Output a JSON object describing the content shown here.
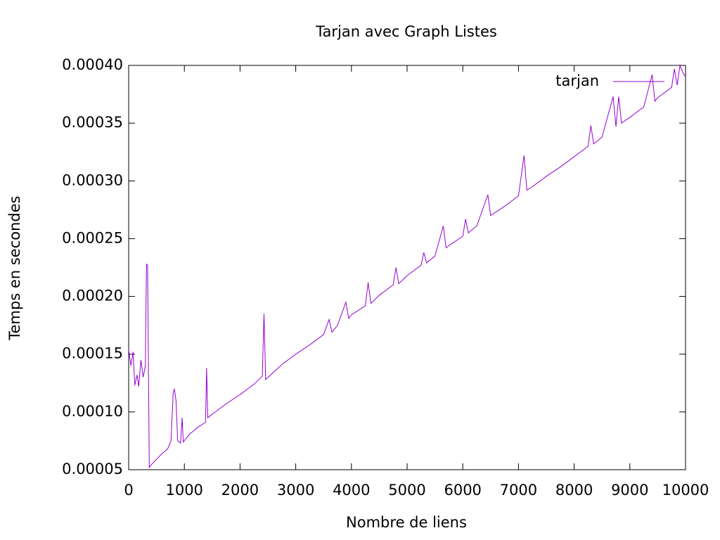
{
  "chart_data": {
    "type": "line",
    "title": "Tarjan avec Graph Listes",
    "x_label": "Nombre de liens",
    "y_label": "Temps en secondes",
    "legend": "top-right",
    "x": [
      0,
      40,
      80,
      110,
      150,
      180,
      220,
      260,
      300,
      320,
      340,
      355,
      370,
      420,
      500,
      600,
      700,
      760,
      800,
      820,
      850,
      880,
      930,
      960,
      980,
      1100,
      1250,
      1380,
      1400,
      1420,
      1500,
      1750,
      2000,
      2250,
      2400,
      2430,
      2460,
      2750,
      3000,
      3250,
      3500,
      3600,
      3650,
      3750,
      3900,
      3950,
      4000,
      4250,
      4300,
      4350,
      4500,
      4750,
      4800,
      4850,
      5000,
      5250,
      5300,
      5350,
      5500,
      5650,
      5700,
      5750,
      6000,
      6050,
      6100,
      6250,
      6450,
      6500,
      6750,
      7000,
      7100,
      7150,
      7250,
      7500,
      7750,
      8000,
      8250,
      8300,
      8350,
      8500,
      8700,
      8750,
      8800,
      8850,
      9000,
      9250,
      9400,
      9450,
      9500,
      9750,
      9800,
      9850,
      9900,
      9950,
      10000
    ],
    "series": [
      {
        "name": "tarjan",
        "color": "#9400d3",
        "values": [
          0.000154,
          0.00014,
          0.000152,
          0.000123,
          0.000132,
          0.000122,
          0.000145,
          0.00013,
          0.00014,
          0.000228,
          0.000227,
          0.00014,
          5.2e-05,
          5.5e-05,
          5.9e-05,
          6.4e-05,
          6.8e-05,
          7.5e-05,
          0.000117,
          0.00012,
          0.00011,
          7.5e-05,
          7.3e-05,
          9.5e-05,
          7.4e-05,
          8.1e-05,
          8.7e-05,
          9.1e-05,
          0.000138,
          9.5e-05,
          9.8e-05,
          0.000107,
          0.000115,
          0.000124,
          0.000131,
          0.000185,
          0.000128,
          0.000141,
          0.00015,
          0.000158,
          0.000167,
          0.00018,
          0.000169,
          0.000175,
          0.000195,
          0.000181,
          0.000184,
          0.000192,
          0.000212,
          0.000194,
          0.000201,
          0.00021,
          0.000225,
          0.000211,
          0.000218,
          0.000227,
          0.000238,
          0.000229,
          0.000235,
          0.000261,
          0.000242,
          0.000244,
          0.000252,
          0.000267,
          0.000255,
          0.000261,
          0.000288,
          0.00027,
          0.000278,
          0.000287,
          0.000322,
          0.000292,
          0.000295,
          0.000304,
          0.000312,
          0.000321,
          0.00033,
          0.000348,
          0.000332,
          0.000338,
          0.000373,
          0.000347,
          0.000373,
          0.00035,
          0.000355,
          0.000364,
          0.000392,
          0.000369,
          0.000372,
          0.000381,
          0.000397,
          0.000383,
          0.0004,
          0.000394,
          0.00039
        ]
      }
    ],
    "xlim": [
      0,
      10000
    ],
    "xticks": [
      0,
      1000,
      2000,
      3000,
      4000,
      5000,
      6000,
      7000,
      8000,
      9000,
      10000
    ],
    "ylim": [
      5e-05,
      0.0004
    ],
    "yticks": [
      {
        "value": 5e-05,
        "label": "0.00005"
      },
      {
        "value": 0.0001,
        "label": "0.00010"
      },
      {
        "value": 0.00015,
        "label": "0.00015"
      },
      {
        "value": 0.0002,
        "label": "0.00020"
      },
      {
        "value": 0.00025,
        "label": "0.00025"
      },
      {
        "value": 0.0003,
        "label": "0.00030"
      },
      {
        "value": 0.00035,
        "label": "0.00035"
      },
      {
        "value": 0.0004,
        "label": "0.00040"
      }
    ]
  }
}
